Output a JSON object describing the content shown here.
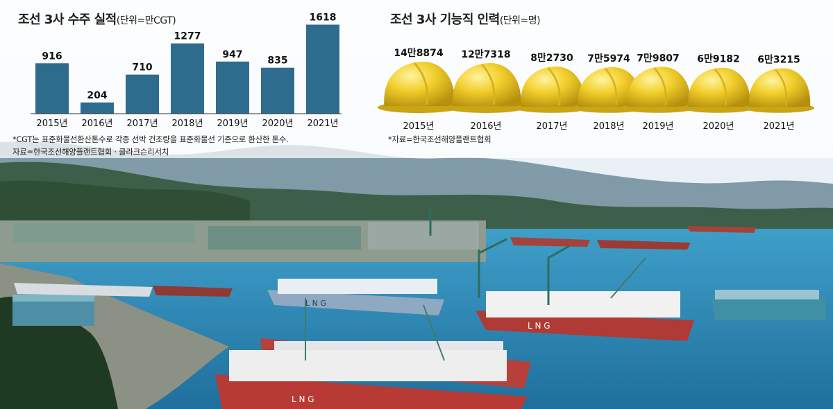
{
  "left_chart": {
    "title": "조선 3사 수주 실적",
    "unit": "(단위=만CGT)",
    "footnote": "*CGT는 표준화물선환산톤수로 각종 선박 건조량을 표준화물선 기준으로 환산한 톤수.",
    "source": "자료=한국조선해양플랜트협회 · 클라크슨리서치"
  },
  "right_chart": {
    "title": "조선 3사 기능직 인력",
    "unit": "(단위=명)",
    "source": "*자료=한국조선해양플랜트협회"
  },
  "colors": {
    "bar": "#2e6c8e",
    "helmet": "#f2cf2c",
    "helmet_shade": "#c9a514"
  },
  "chart_data": [
    {
      "type": "bar",
      "title": "조선 3사 수주 실적",
      "unit": "만CGT",
      "categories": [
        "2015년",
        "2016년",
        "2017년",
        "2018년",
        "2019년",
        "2020년",
        "2021년"
      ],
      "values": [
        916,
        204,
        710,
        1277,
        947,
        835,
        1618
      ],
      "value_labels": [
        "916",
        "204",
        "710",
        "1277",
        "947",
        "835",
        "1618"
      ],
      "ylim": [
        0,
        1650
      ],
      "grid": false
    },
    {
      "type": "bar",
      "style": "pictograph-helmet",
      "title": "조선 3사 기능직 인력",
      "unit": "명",
      "categories": [
        "2015년",
        "2016년",
        "2017년",
        "2018년",
        "2019년",
        "2020년",
        "2021년"
      ],
      "values": [
        148874,
        127318,
        82730,
        75974,
        79807,
        69182,
        63215
      ],
      "value_labels": [
        "14만8874",
        "12만7318",
        "8만2730",
        "7만5974",
        "7만9807",
        "6만9182",
        "6만3215"
      ]
    }
  ]
}
